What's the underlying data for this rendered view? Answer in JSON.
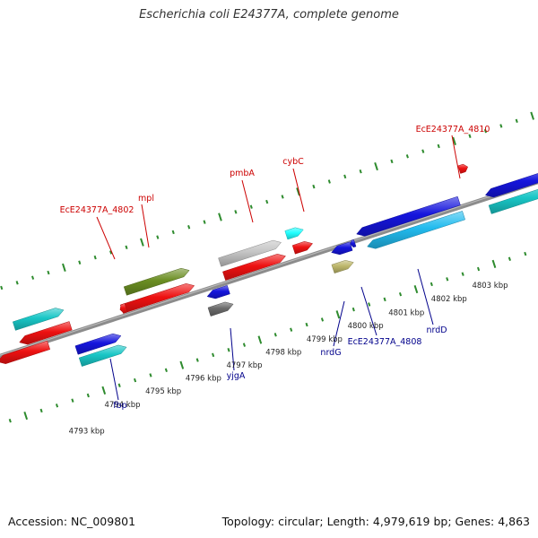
{
  "title": "Escherichia coli E24377A, complete genome",
  "footer": {
    "accession": "Accession: NC_009801",
    "stats": "Topology: circular; Length: 4,979,619 bp; Genes: 4,863"
  },
  "colors": {
    "backbone": "#8c8c8c",
    "tick": "#2e8b2e",
    "label_top": "#cc0000",
    "label_bottom": "#00008b",
    "red": "#ee1111",
    "cyan": "#19c6c6",
    "blue": "#1515dd",
    "olive": "#6b8e23",
    "light_blue": "#22bbee",
    "gray": "#6a6a6a",
    "light_gray": "#c4c4c4",
    "bright_cyan": "#22ffff",
    "khaki": "#bdb76b"
  },
  "scale_labels": [
    "4793 kbp",
    "4794 kbp",
    "4795 kbp",
    "4796 kbp",
    "4797 kbp",
    "4798 kbp",
    "4799 kbp",
    "4800 kbp",
    "4801 kbp",
    "4802 kbp",
    "4803 kbp"
  ],
  "gene_labels": [
    {
      "text": "EcE24377A_4810",
      "side": "top"
    },
    {
      "text": "cybC",
      "side": "top"
    },
    {
      "text": "pmbA",
      "side": "top"
    },
    {
      "text": "mpl",
      "side": "top"
    },
    {
      "text": "EcE24377A_4802",
      "side": "top"
    },
    {
      "text": "fbp",
      "side": "bottom"
    },
    {
      "text": "yjgA",
      "side": "bottom"
    },
    {
      "text": "nrdG",
      "side": "bottom"
    },
    {
      "text": "EcE24377A_4808",
      "side": "bottom"
    },
    {
      "text": "nrdD",
      "side": "bottom"
    }
  ]
}
